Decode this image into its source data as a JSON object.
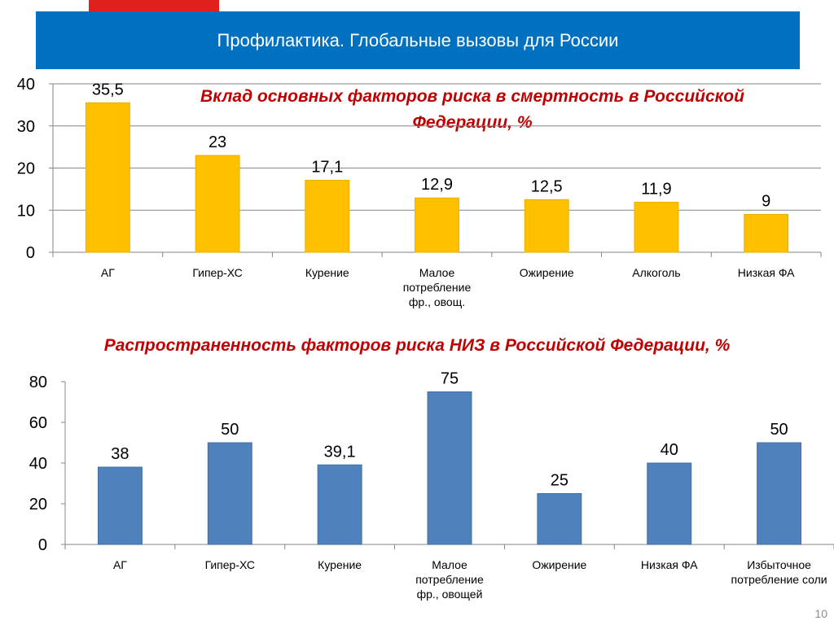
{
  "header": {
    "title": "Профилактика. Глобальные вызовы для России"
  },
  "page_number": "10",
  "colors": {
    "header_bg": "#0070c0",
    "accent_red": "#e0201c",
    "title_red": "#c00000",
    "bar_yellow": "#ffc000",
    "bar_blue": "#4f81bd"
  },
  "chart_data": [
    {
      "type": "bar",
      "title": "Вклад основных факторов риска в смертность в Российской Федерации, %",
      "categories": [
        [
          "АГ"
        ],
        [
          "Гипер-ХС"
        ],
        [
          "Курение"
        ],
        [
          "Малое",
          "потребление",
          "фр., овощ."
        ],
        [
          "Ожирение"
        ],
        [
          "Алкоголь"
        ],
        [
          "Низкая ФА"
        ]
      ],
      "values": [
        35.5,
        23,
        17.1,
        12.9,
        12.5,
        11.9,
        9
      ],
      "value_labels": [
        "35,5",
        "23",
        "17,1",
        "12,9",
        "12,5",
        "11,9",
        "9"
      ],
      "ylim": [
        0,
        40
      ],
      "yticks": [
        "0",
        "10",
        "20",
        "30",
        "40"
      ],
      "grid": true,
      "color": "#ffc000"
    },
    {
      "type": "bar",
      "title": "Распространенность факторов риска НИЗ в Российской Федерации, %",
      "categories": [
        [
          "АГ"
        ],
        [
          "Гипер-ХС"
        ],
        [
          "Курение"
        ],
        [
          "Малое",
          "потребление",
          "фр., овощей"
        ],
        [
          "Ожирение"
        ],
        [
          "Низкая ФА"
        ],
        [
          "Избыточное",
          "потребление соли"
        ]
      ],
      "values": [
        38,
        50,
        39.1,
        75,
        25,
        40,
        50
      ],
      "value_labels": [
        "38",
        "50",
        "39,1",
        "75",
        "25",
        "40",
        "50"
      ],
      "ylim": [
        0,
        80
      ],
      "yticks": [
        "0",
        "20",
        "40",
        "60",
        "80"
      ],
      "grid": false,
      "color": "#4f81bd"
    }
  ]
}
